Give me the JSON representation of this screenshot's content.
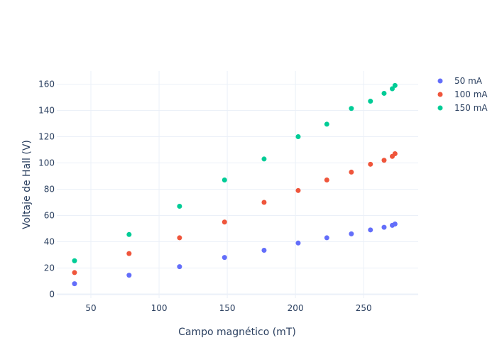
{
  "chart_data": {
    "type": "scatter",
    "xlabel": "Campo magnético (mT)",
    "ylabel": "Voltaje de Hall (V)",
    "xlim": [
      25,
      290
    ],
    "ylim": [
      -3,
      170
    ],
    "x_ticks": [
      50,
      100,
      150,
      200,
      250
    ],
    "y_ticks": [
      0,
      20,
      40,
      60,
      80,
      100,
      120,
      140,
      160
    ],
    "grid": true,
    "legend_position": "top-right",
    "x": [
      38,
      78,
      115,
      148,
      177,
      202,
      223,
      241,
      255,
      265,
      271,
      273
    ],
    "series": [
      {
        "name": "50 mA",
        "color": "#636efa",
        "values": [
          8,
          14.5,
          21,
          28,
          33.5,
          39,
          43,
          46,
          49,
          51,
          52.5,
          53.5
        ]
      },
      {
        "name": "100 mA",
        "color": "#ef553b",
        "values": [
          16.5,
          31,
          43,
          55,
          70,
          79,
          87,
          93,
          99,
          102,
          105,
          107
        ]
      },
      {
        "name": "150 mA",
        "color": "#00cc96",
        "values": [
          25.5,
          45.5,
          67,
          87,
          103,
          120,
          129.5,
          141.5,
          147,
          153,
          156.5,
          159
        ]
      }
    ]
  }
}
